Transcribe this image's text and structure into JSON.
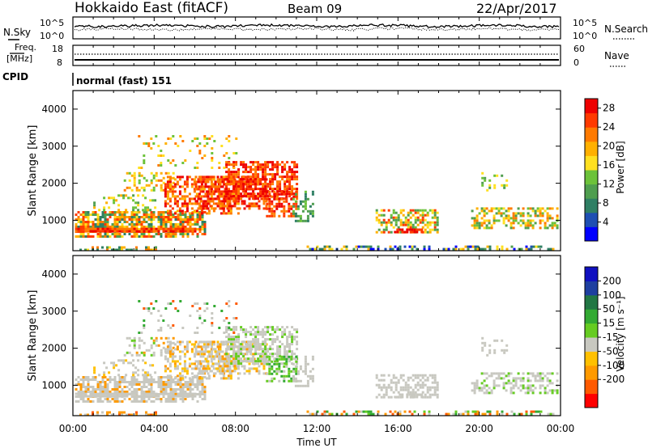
{
  "header": {
    "title": "Hokkaido East (fitACF)",
    "beam": "Beam 09",
    "date": "22/Apr/2017"
  },
  "noise_panel": {
    "left_label": "N.Sky",
    "right_label": "N.Search",
    "left_ticks": [
      "10^5",
      "10^0"
    ],
    "right_ticks": [
      "10^5",
      "10^0"
    ]
  },
  "freq_panel": {
    "left_label_1": "Freq.",
    "left_label_2": "[MHz]",
    "left_ticks": [
      "18",
      "8"
    ],
    "right_label": "Nave",
    "right_ticks": [
      "60",
      "0"
    ]
  },
  "cpid_panel": {
    "label": "CPID",
    "text": "normal (fast) 151"
  },
  "colors": {
    "power": [
      "#0000ff",
      "#1e4fb3",
      "#2f7f64",
      "#4f9e4f",
      "#6cc23a",
      "#ffe020",
      "#ffb000",
      "#ff7a00",
      "#ff3a00",
      "#ee0000"
    ],
    "velocity": [
      "#ff0000",
      "#ff5a00",
      "#ff9a00",
      "#ffc000",
      "#c8c8c0",
      "#66cc22",
      "#33aa33",
      "#227744",
      "#1e3fa0",
      "#1010c0"
    ]
  },
  "chart_data": [
    {
      "type": "heatmap",
      "panel": "power",
      "ylabel": "Slant Range [km]",
      "yticks": [
        "1000",
        "2000",
        "3000",
        "4000"
      ],
      "ylim": [
        180,
        4500
      ],
      "xlim": [
        "00:00",
        "24:00"
      ],
      "colorbar_label": "Power [dB]",
      "colorbar_ticks": [
        "4",
        "8",
        "12",
        "16",
        "20",
        "24",
        "28"
      ],
      "colorbar_range": [
        0,
        30
      ]
    },
    {
      "type": "heatmap",
      "panel": "velocity",
      "ylabel": "Slant Range [km]",
      "yticks": [
        "1000",
        "2000",
        "3000",
        "4000"
      ],
      "ylim": [
        180,
        4500
      ],
      "xlim": [
        "00:00",
        "24:00"
      ],
      "colorbar_label": "Velocity [m s⁻¹]",
      "colorbar_ticks": [
        "200",
        "100",
        "50",
        "15",
        "-15",
        "-50",
        "-100",
        "-200"
      ]
    }
  ],
  "x_axis": {
    "ticks": [
      "00:00",
      "04:00",
      "08:00",
      "12:00",
      "16:00",
      "20:00",
      "00:00"
    ],
    "label": "Time UT"
  }
}
